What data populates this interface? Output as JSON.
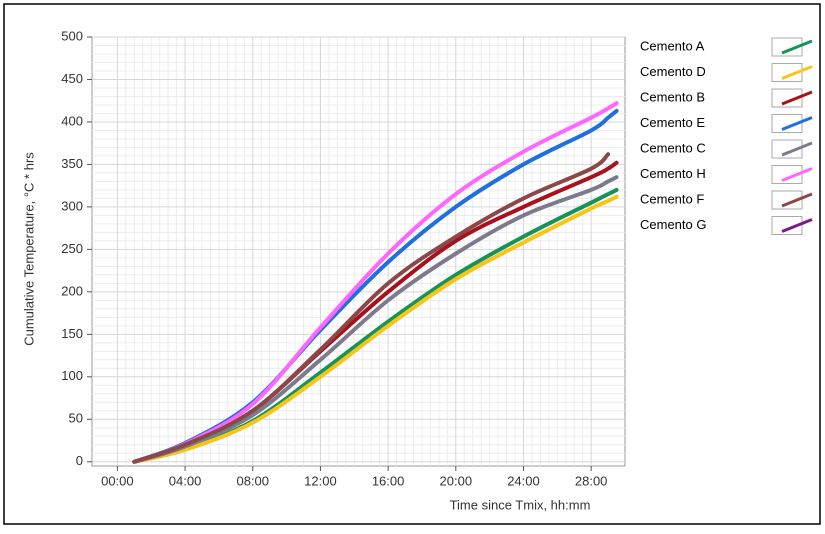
{
  "chart_data": {
    "type": "line",
    "y_label": "Cumulative Temperature, °C * hrs",
    "x_label": "Time since Tmix, hh:mm",
    "x": [
      1,
      4,
      8,
      12,
      16,
      20,
      24,
      28,
      29,
      29.5
    ],
    "xlim": [
      -1.5,
      30
    ],
    "xticks": [
      {
        "value": 0,
        "label": "00:00"
      },
      {
        "value": 4,
        "label": "04:00"
      },
      {
        "value": 8,
        "label": "08:00"
      },
      {
        "value": 12,
        "label": "12:00"
      },
      {
        "value": 16,
        "label": "16:00"
      },
      {
        "value": 20,
        "label": "20:00"
      },
      {
        "value": 24,
        "label": "24:00"
      },
      {
        "value": 28,
        "label": "28:00"
      }
    ],
    "ylim": [
      -5,
      500
    ],
    "yticks": [
      0,
      50,
      100,
      150,
      200,
      250,
      300,
      350,
      400,
      450,
      500
    ],
    "grid": true,
    "legend": "right",
    "series": [
      {
        "name": "Cemento A",
        "color": "#17935a",
        "values": [
          0,
          15,
          48,
          105,
          165,
          220,
          265,
          305,
          315,
          320
        ]
      },
      {
        "name": "Cemento D",
        "color": "#f5c518",
        "values": [
          0,
          14,
          46,
          100,
          160,
          215,
          258,
          298,
          307,
          312
        ]
      },
      {
        "name": "Cemento B",
        "color": "#a8101c",
        "values": [
          0,
          20,
          60,
          130,
          200,
          260,
          300,
          335,
          345,
          352
        ]
      },
      {
        "name": "Cemento E",
        "color": "#1f6fe0",
        "values": [
          0,
          22,
          70,
          155,
          235,
          300,
          350,
          390,
          405,
          413
        ]
      },
      {
        "name": "Cemento C",
        "color": "#7c7a8c",
        "values": [
          0,
          18,
          55,
          120,
          190,
          245,
          290,
          320,
          330,
          335
        ]
      },
      {
        "name": "Cemento H",
        "color": "#ff66ff",
        "values": [
          0,
          21,
          68,
          158,
          245,
          315,
          365,
          405,
          416,
          422
        ]
      },
      {
        "name": "Cemento F",
        "color": "#8b4848",
        "values": [
          0,
          20,
          60,
          132,
          210,
          265,
          310,
          345,
          362,
          null
        ]
      },
      {
        "name": "Cemento G",
        "color": "#7a1a8c",
        "values": [
          null,
          null,
          null,
          null,
          null,
          null,
          null,
          null,
          null,
          null
        ]
      }
    ]
  }
}
